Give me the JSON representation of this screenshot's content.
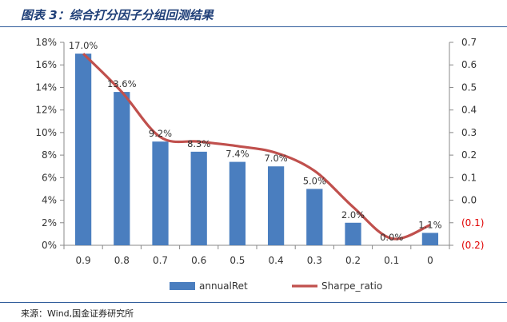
{
  "header": {
    "title": "图表 3：综合打分因子分组回测结果"
  },
  "footer": {
    "source": "来源：Wind,国金证券研究所"
  },
  "chart_data": {
    "type": "bar",
    "categories": [
      "0.9",
      "0.8",
      "0.7",
      "0.6",
      "0.5",
      "0.4",
      "0.3",
      "0.2",
      "0.1",
      "0"
    ],
    "series": [
      {
        "name": "annualRet",
        "type": "bar",
        "axis": "left",
        "values": [
          17.0,
          13.6,
          9.2,
          8.3,
          7.4,
          7.0,
          5.0,
          2.0,
          0.0,
          1.1
        ],
        "labels": [
          "17.0%",
          "13.6%",
          "9.2%",
          "8.3%",
          "7.4%",
          "7.0%",
          "5.0%",
          "2.0%",
          "0.0%",
          "1.1%"
        ],
        "color": "#4a7ebf"
      },
      {
        "name": "Sharpe_ratio",
        "type": "line",
        "axis": "right",
        "values": [
          0.65,
          0.48,
          0.28,
          0.26,
          0.24,
          0.21,
          0.13,
          -0.03,
          -0.17,
          -0.11
        ],
        "color": "#c0504d"
      }
    ],
    "y_left": {
      "min": 0,
      "max": 18,
      "step": 2,
      "ticks": [
        "0%",
        "2%",
        "4%",
        "6%",
        "8%",
        "10%",
        "12%",
        "14%",
        "16%",
        "18%"
      ]
    },
    "y_right": {
      "min": -0.2,
      "max": 0.7,
      "step": 0.1,
      "ticks": [
        "(0.2)",
        "(0.1)",
        "0.0",
        "0.1",
        "0.2",
        "0.3",
        "0.4",
        "0.5",
        "0.6",
        "0.7"
      ],
      "negative_color": "#e00000"
    },
    "legend_position": "bottom",
    "grid": false
  }
}
